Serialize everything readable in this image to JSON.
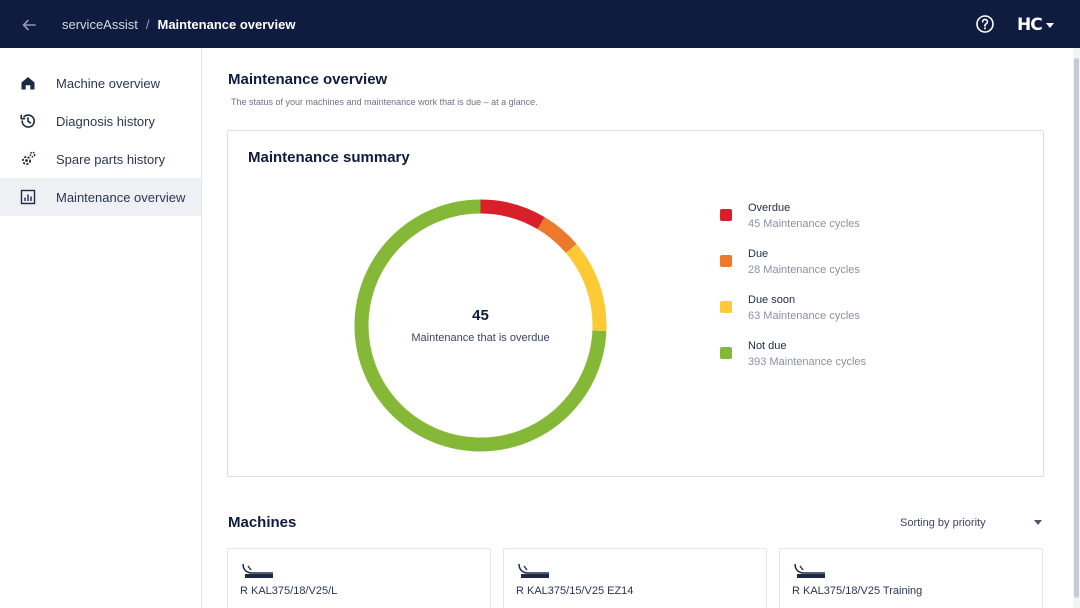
{
  "header": {
    "app_name": "serviceAssist",
    "separator": "/",
    "page_name": "Maintenance overview",
    "logo_text": "HC"
  },
  "sidebar": {
    "items": [
      {
        "label": "Machine overview",
        "icon": "home-icon",
        "active": false
      },
      {
        "label": "Diagnosis history",
        "icon": "history-icon",
        "active": false
      },
      {
        "label": "Spare parts history",
        "icon": "gears-icon",
        "active": false
      },
      {
        "label": "Maintenance overview",
        "icon": "chart-icon",
        "active": true
      }
    ]
  },
  "page": {
    "title": "Maintenance overview",
    "subtitle": "The status of your machines and maintenance work that is due – at a glance."
  },
  "summary": {
    "title": "Maintenance summary",
    "center_value": "45",
    "center_caption": "Maintenance that is overdue",
    "legend": [
      {
        "label": "Overdue",
        "sub": "45 Maintenance cycles",
        "value": 45,
        "color": "#d81f2a"
      },
      {
        "label": "Due",
        "sub": "28 Maintenance cycles",
        "value": 28,
        "color": "#ec7a2a"
      },
      {
        "label": "Due soon",
        "sub": "63 Maintenance cycles",
        "value": 63,
        "color": "#fdc935"
      },
      {
        "label": "Not due",
        "sub": "393 Maintenance cycles",
        "value": 393,
        "color": "#86b838"
      }
    ]
  },
  "machines": {
    "title": "Machines",
    "sort_label": "Sorting by priority",
    "cards": [
      {
        "name": "R KAL375/18/V25/L"
      },
      {
        "name": "R KAL375/15/V25 EZ14"
      },
      {
        "name": "R KAL375/18/V25 Training"
      }
    ]
  }
}
